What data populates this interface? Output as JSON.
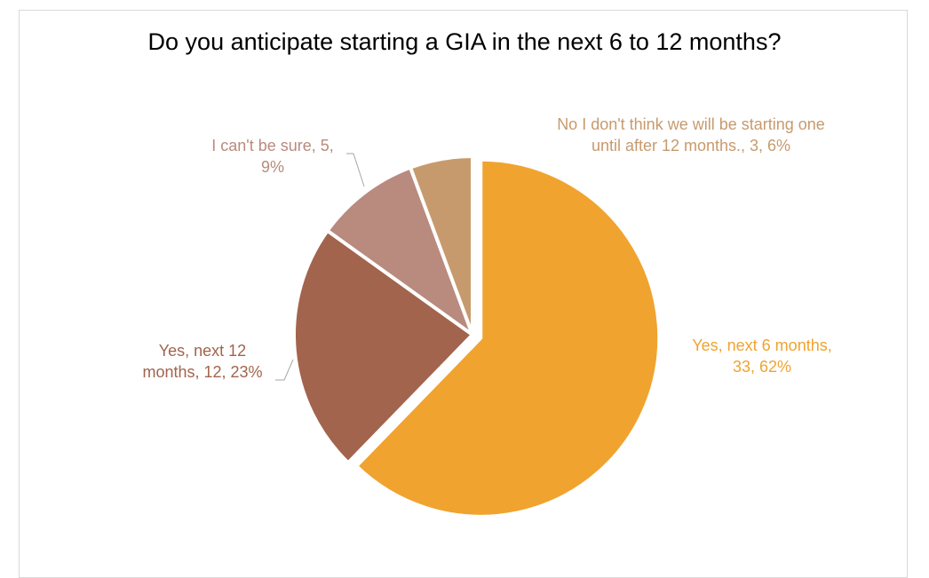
{
  "chart_data": {
    "type": "pie",
    "title": "Do you anticipate starting a GIA in the next 6 to 12 months?",
    "slices": [
      {
        "label": "Yes, next 6 months",
        "value": 33,
        "percent": "62%",
        "color": "#F0A32F",
        "exploded": true
      },
      {
        "label": "Yes, next 12 months",
        "value": 12,
        "percent": "23%",
        "color": "#A2644D",
        "exploded": false
      },
      {
        "label": "I can't be sure",
        "value": 5,
        "percent": "9%",
        "color": "#B98A7E",
        "exploded": false
      },
      {
        "label": "No I don't think we will be starting one until after 12 months.",
        "value": 3,
        "percent": "6%",
        "color": "#C79A6D",
        "exploded": false
      }
    ],
    "data_labels": [
      {
        "lines": [
          "Yes, next 6 months,",
          "33, 62%"
        ],
        "color": "#F0A32F"
      },
      {
        "lines": [
          "Yes, next 12",
          "months, 12, 23%"
        ],
        "color": "#A2644D"
      },
      {
        "lines": [
          "I can't be sure, 5,",
          "9%"
        ],
        "color": "#B98A7E"
      },
      {
        "lines": [
          "No I don't think we will be starting one",
          "until after 12 months., 3, 6%"
        ],
        "color": "#C79A6D"
      }
    ],
    "legend": "none"
  }
}
